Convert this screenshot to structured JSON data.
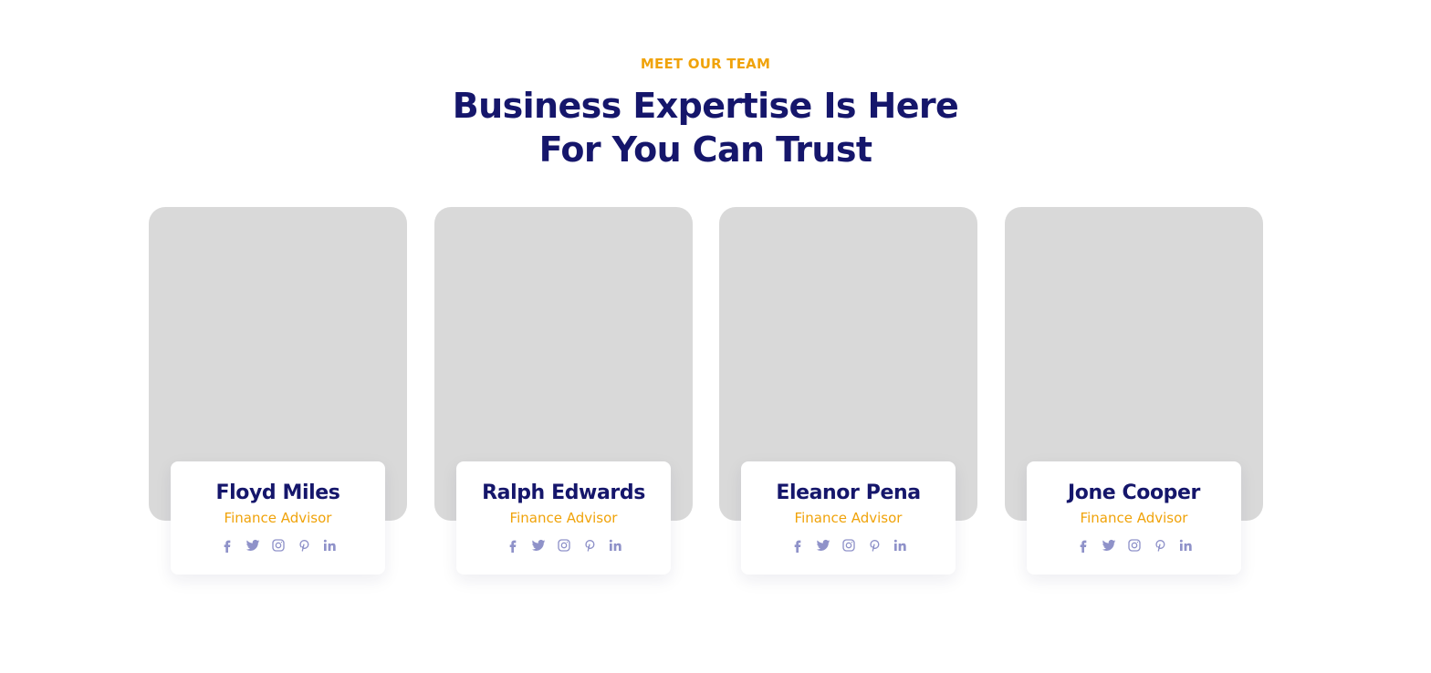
{
  "section": {
    "eyebrow": "MEET OUR TEAM",
    "title_line_1": "Business Expertise Is Here",
    "title_line_2": "For You Can Trust"
  },
  "colors": {
    "accent": "#f0a30a",
    "heading": "#15166b",
    "icon": "#8f92c9",
    "photo_placeholder": "#d9d9d9"
  },
  "team": [
    {
      "name": "Floyd Miles",
      "role": "Finance Advisor",
      "socials": [
        "facebook-icon",
        "twitter-icon",
        "instagram-icon",
        "pinterest-icon",
        "linkedin-icon"
      ]
    },
    {
      "name": "Ralph Edwards",
      "role": "Finance Advisor",
      "socials": [
        "facebook-icon",
        "twitter-icon",
        "instagram-icon",
        "pinterest-icon",
        "linkedin-icon"
      ]
    },
    {
      "name": "Eleanor Pena",
      "role": "Finance Advisor",
      "socials": [
        "facebook-icon",
        "twitter-icon",
        "instagram-icon",
        "pinterest-icon",
        "linkedin-icon"
      ]
    },
    {
      "name": "Jone Cooper",
      "role": "Finance Advisor",
      "socials": [
        "facebook-icon",
        "twitter-icon",
        "instagram-icon",
        "pinterest-icon",
        "linkedin-icon"
      ]
    }
  ]
}
